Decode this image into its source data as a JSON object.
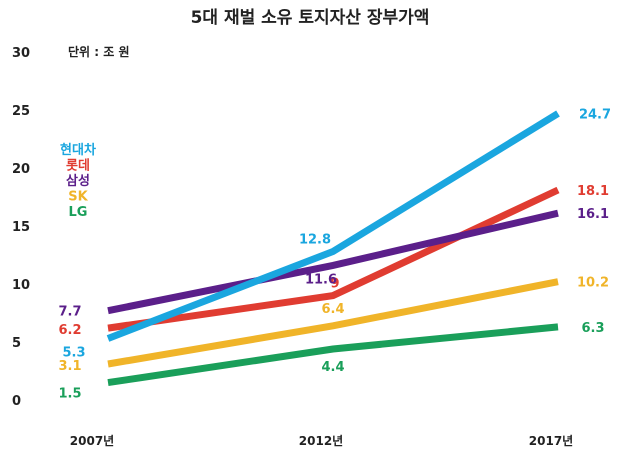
{
  "chart_data": {
    "type": "line",
    "title": "5대 재벌 소유 토지자산 장부가액",
    "unit_label": "단위 : 조 원",
    "x": [
      "2007년",
      "2012년",
      "2017년"
    ],
    "y_ticks": [
      "0",
      "5",
      "10",
      "15",
      "20",
      "25",
      "30"
    ],
    "ylim": [
      0,
      30
    ],
    "grid": false,
    "legend_position": "left",
    "series": [
      {
        "name": "현대차",
        "color": "#1aa6df",
        "values": [
          5.3,
          12.8,
          24.7
        ],
        "labels": [
          "5.3",
          "12.8",
          "24.7"
        ]
      },
      {
        "name": "롯데",
        "color": "#e03c31",
        "values": [
          6.2,
          9.0,
          18.1
        ],
        "labels": [
          "6.2",
          "9",
          "18.1"
        ]
      },
      {
        "name": "삼성",
        "color": "#5b1f8a",
        "values": [
          7.7,
          11.6,
          16.1
        ],
        "labels": [
          "7.7",
          "11.6",
          "16.1"
        ]
      },
      {
        "name": "SK",
        "color": "#f0b429",
        "values": [
          3.1,
          6.4,
          10.2
        ],
        "labels": [
          "3.1",
          "6.4",
          "10.2"
        ]
      },
      {
        "name": "LG",
        "color": "#1a9f5a",
        "values": [
          1.5,
          4.4,
          6.3
        ],
        "labels": [
          "1.5",
          "4.4",
          "6.3"
        ]
      }
    ]
  }
}
